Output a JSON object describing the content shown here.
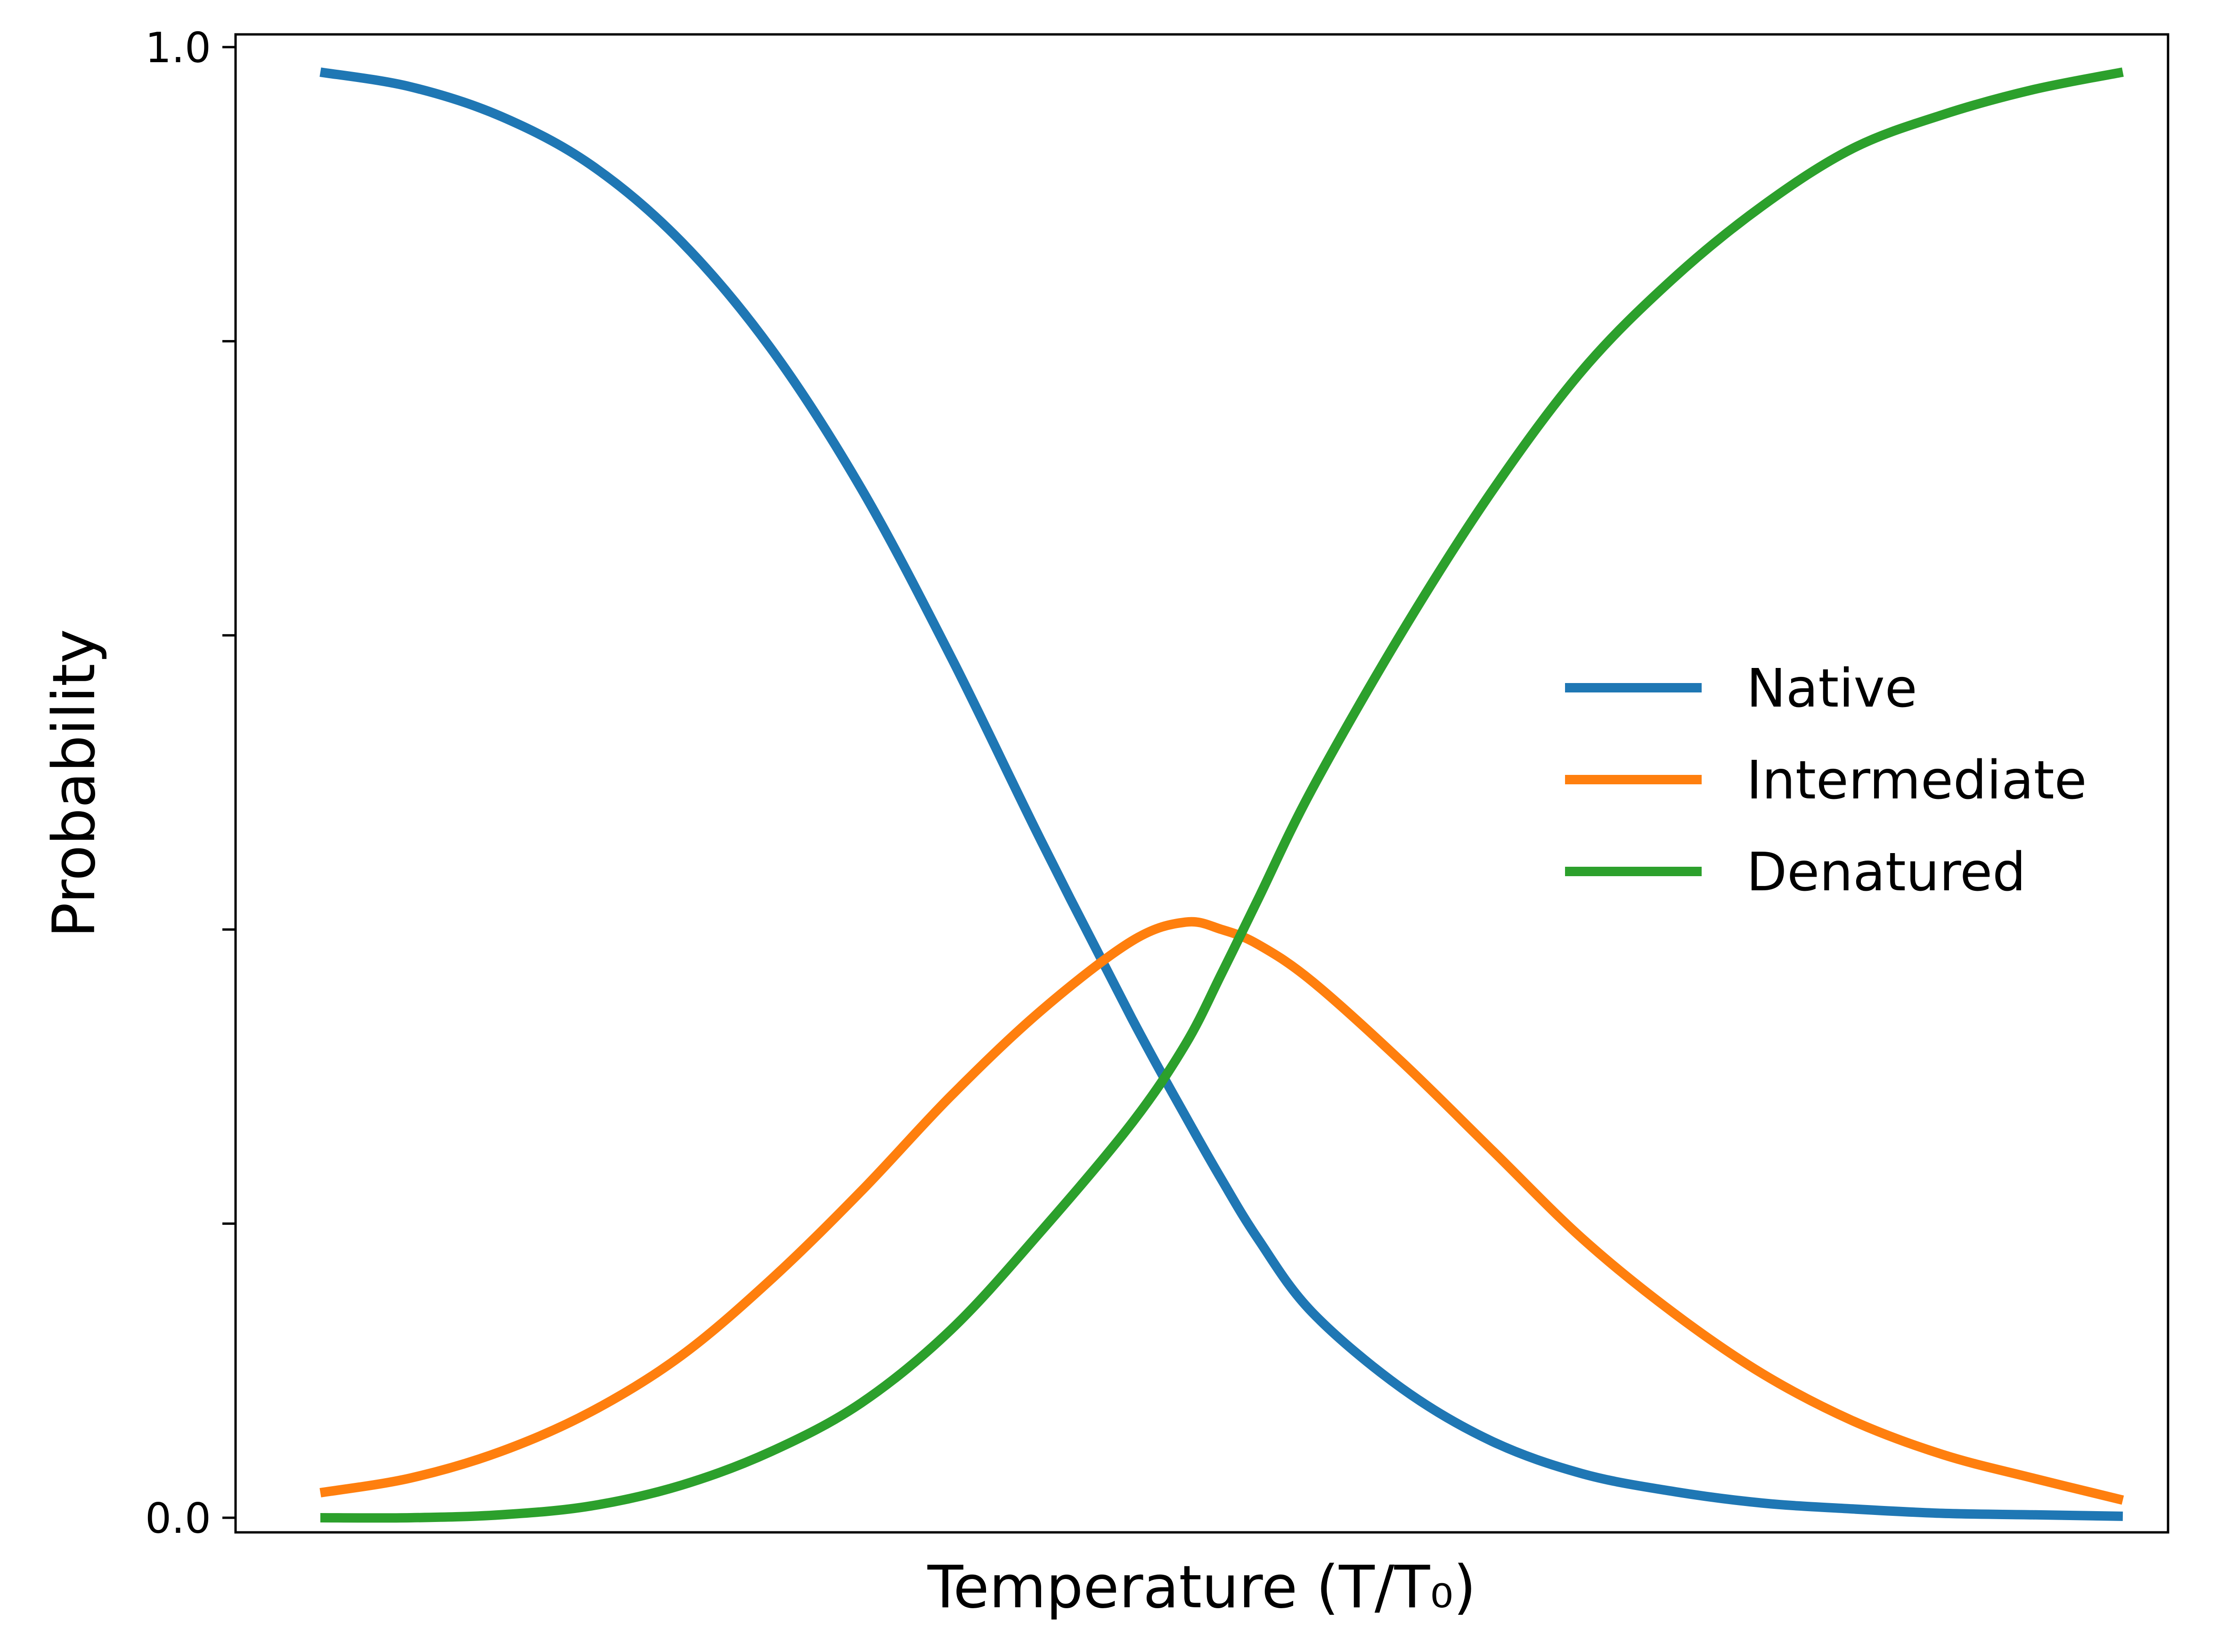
{
  "chart_data": {
    "type": "line",
    "xlabel": "Temperature (T/T₀)",
    "ylabel": "Probability",
    "xlim": [
      0,
      1
    ],
    "ylim": [
      0,
      1
    ],
    "grid": false,
    "legend_position": "right",
    "y_ticks": [
      {
        "value": 0.0,
        "label": "0.0"
      },
      {
        "value": 0.2,
        "label": ""
      },
      {
        "value": 0.4,
        "label": ""
      },
      {
        "value": 0.6,
        "label": ""
      },
      {
        "value": 0.8,
        "label": ""
      },
      {
        "value": 1.0,
        "label": "1.0"
      }
    ],
    "x": [
      0.0,
      0.05,
      0.1,
      0.15,
      0.2,
      0.25,
      0.3,
      0.35,
      0.4,
      0.45,
      0.48,
      0.5,
      0.52,
      0.55,
      0.6,
      0.65,
      0.7,
      0.75,
      0.8,
      0.85,
      0.9,
      0.95,
      1.0
    ],
    "series": [
      {
        "name": "Native",
        "color": "#1f77b4",
        "values": [
          0.983,
          0.973,
          0.953,
          0.92,
          0.868,
          0.795,
          0.7,
          0.585,
          0.46,
          0.34,
          0.273,
          0.23,
          0.19,
          0.14,
          0.088,
          0.052,
          0.03,
          0.018,
          0.01,
          0.006,
          0.003,
          0.002,
          0.001
        ]
      },
      {
        "name": "Intermediate",
        "color": "#ff7f0e",
        "values": [
          0.017,
          0.027,
          0.045,
          0.072,
          0.11,
          0.162,
          0.222,
          0.287,
          0.345,
          0.392,
          0.405,
          0.4,
          0.39,
          0.365,
          0.31,
          0.25,
          0.19,
          0.14,
          0.098,
          0.066,
          0.043,
          0.027,
          0.012
        ]
      },
      {
        "name": "Denatured",
        "color": "#2ca02c",
        "values": [
          0.0,
          0.0,
          0.002,
          0.008,
          0.022,
          0.045,
          0.078,
          0.128,
          0.195,
          0.268,
          0.322,
          0.37,
          0.42,
          0.495,
          0.602,
          0.698,
          0.78,
          0.842,
          0.892,
          0.931,
          0.954,
          0.971,
          0.983
        ]
      }
    ]
  }
}
